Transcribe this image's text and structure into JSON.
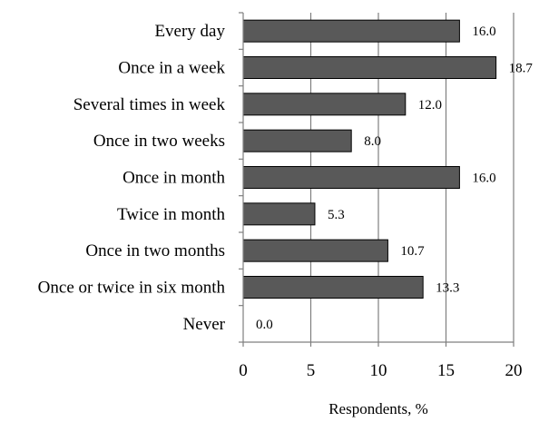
{
  "chart_data": {
    "type": "bar",
    "orientation": "horizontal",
    "categories": [
      "Every day",
      "Once in a week",
      "Several times in week",
      "Once in two weeks",
      "Once in month",
      "Twice in month",
      "Once in two months",
      "Once or twice in six month",
      "Never"
    ],
    "values": [
      16.0,
      18.7,
      12.0,
      8.0,
      16.0,
      5.3,
      10.7,
      13.3,
      0.0
    ],
    "data_labels": [
      "16.0",
      "18.7",
      "12.0",
      "8.0",
      "16.0",
      "5.3",
      "10.7",
      "13.3",
      "0.0"
    ],
    "xlabel": "Respondents, %",
    "ylabel": "",
    "xlim": [
      0,
      20
    ],
    "x_ticks": [
      "0",
      "5",
      "10",
      "15",
      "20"
    ],
    "grid": "vertical",
    "bar_color": "#595959",
    "bar_edge_color": "#000000",
    "grid_color": "#7f7f7f"
  }
}
